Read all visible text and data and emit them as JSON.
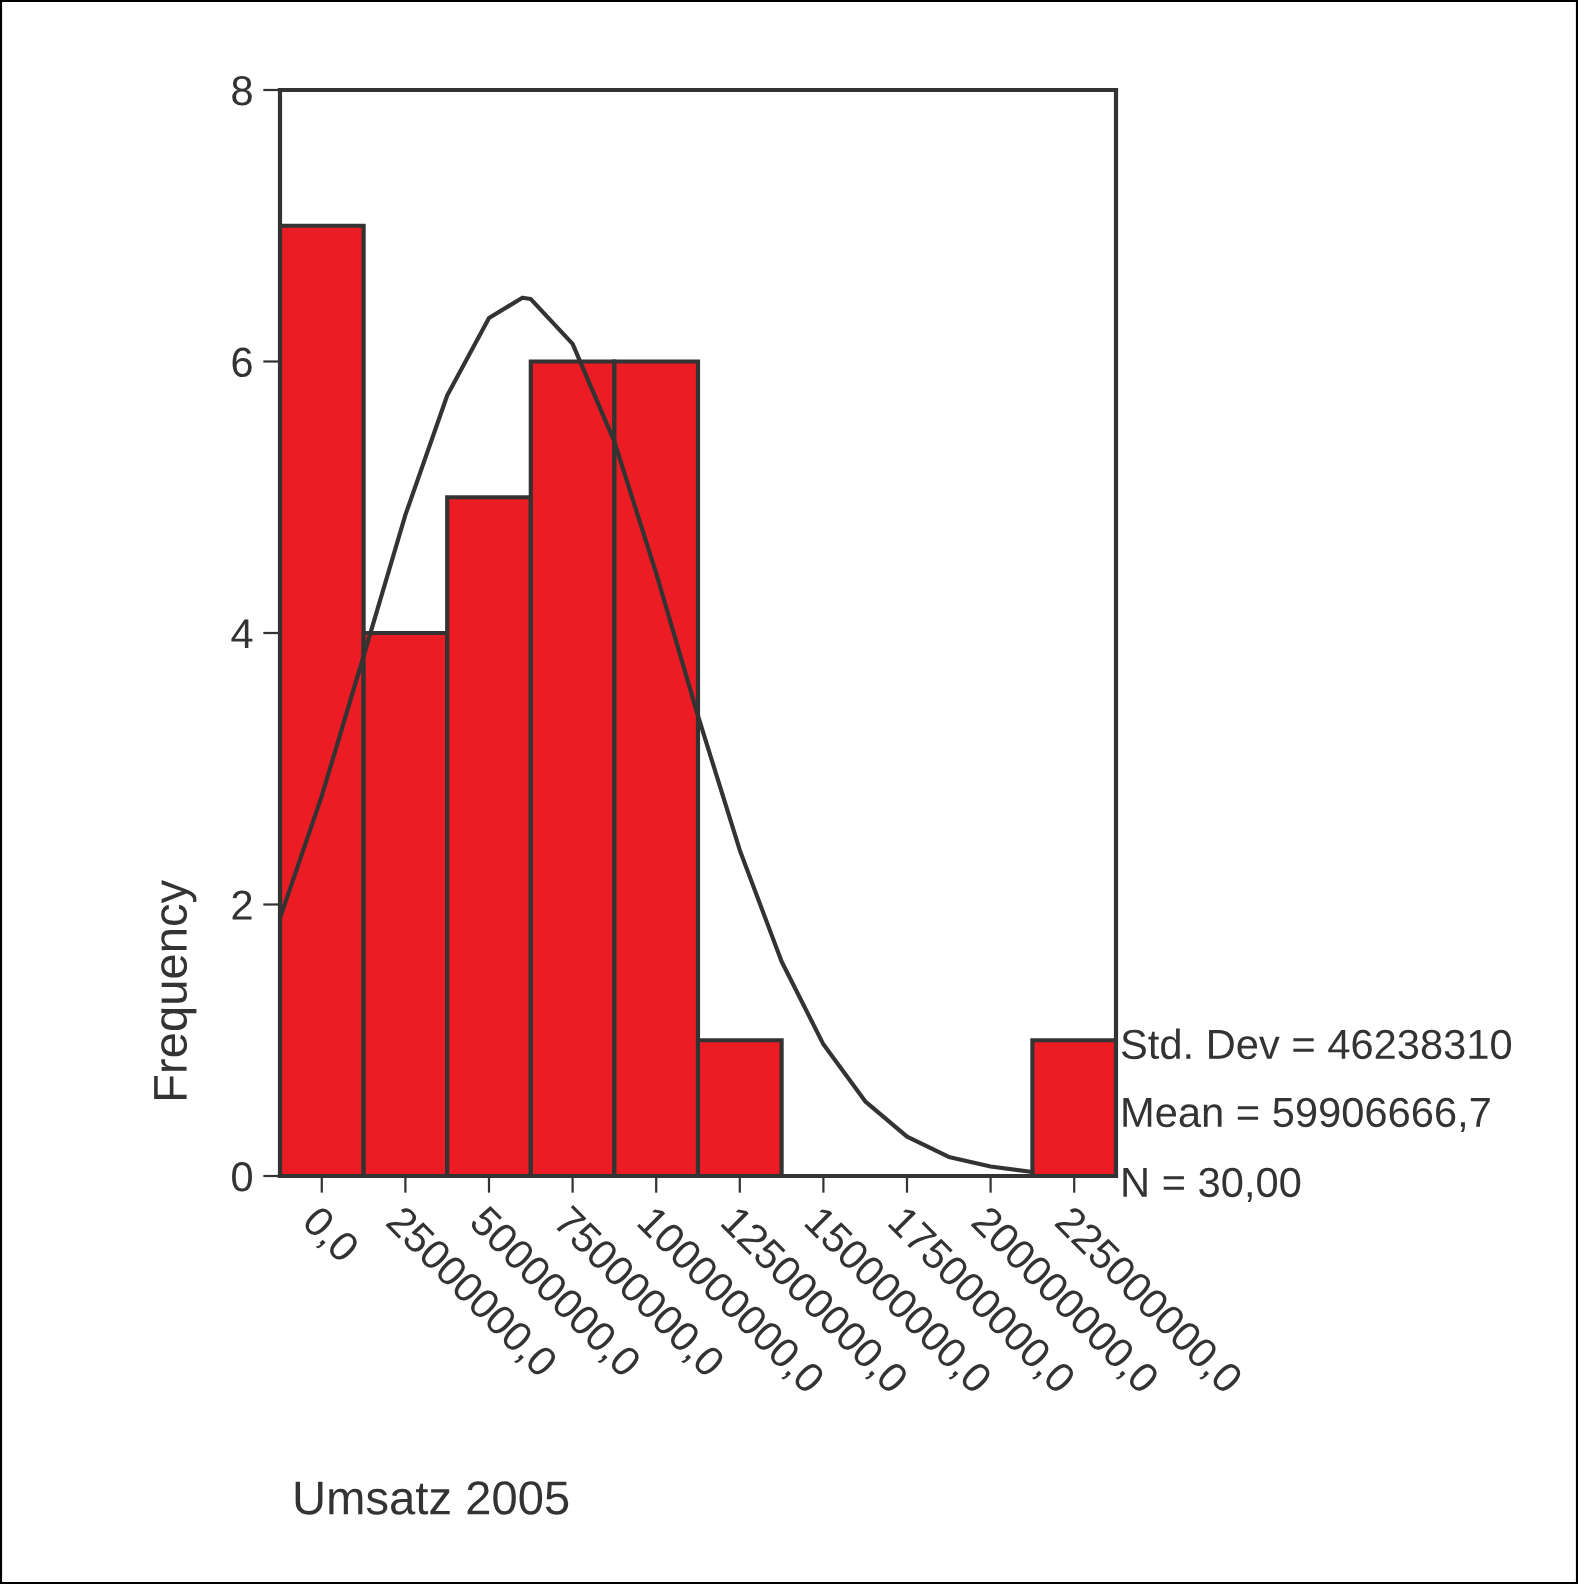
{
  "chart_data": {
    "type": "histogram",
    "xlabel": "Umsatz 2005",
    "ylabel": "Frequency",
    "bins": [
      -12500000,
      12500000,
      37500000,
      62500000,
      87500000,
      112500000,
      137500000,
      162500000,
      187500000,
      212500000,
      237500000
    ],
    "values": [
      7,
      4,
      5,
      6,
      6,
      1,
      0,
      0,
      0,
      1
    ],
    "color": "#ec1c24",
    "series": [
      {
        "type": "line",
        "color": "#333333",
        "x": [
          -12500000,
          0,
          12500000,
          25000000,
          37500000,
          50000000,
          60000000,
          62500000,
          75000000,
          87500000,
          100000000,
          112500000,
          125000000,
          137500000,
          150000000,
          162500000,
          175000000,
          187500000,
          200000000,
          212500000
        ],
        "values": [
          1.9,
          2.8,
          3.83,
          4.87,
          5.75,
          6.32,
          6.47,
          6.46,
          6.13,
          5.41,
          4.44,
          3.39,
          2.4,
          1.58,
          0.97,
          0.55,
          0.29,
          0.14,
          0.07,
          0.03
        ]
      }
    ],
    "xlim": [
      -12500000,
      237500000
    ],
    "ylim": [
      0,
      8
    ],
    "xticks": [
      {
        "value": 0,
        "label": "0,0"
      },
      {
        "value": 25000000,
        "label": "25000000,0"
      },
      {
        "value": 50000000,
        "label": "50000000,0"
      },
      {
        "value": 75000000,
        "label": "75000000,0"
      },
      {
        "value": 100000000,
        "label": "100000000,0"
      },
      {
        "value": 125000000,
        "label": "125000000,0"
      },
      {
        "value": 150000000,
        "label": "150000000,0"
      },
      {
        "value": 175000000,
        "label": "175000000,0"
      },
      {
        "value": 200000000,
        "label": "200000000,0"
      },
      {
        "value": 225000000,
        "label": "225000000,0"
      }
    ],
    "yticks": [
      0,
      2,
      4,
      6,
      8
    ],
    "annotations": [
      "Std. Dev = 46238310",
      "Mean = 59906666,7",
      "N = 30,00"
    ],
    "grid": false,
    "legend": false
  }
}
